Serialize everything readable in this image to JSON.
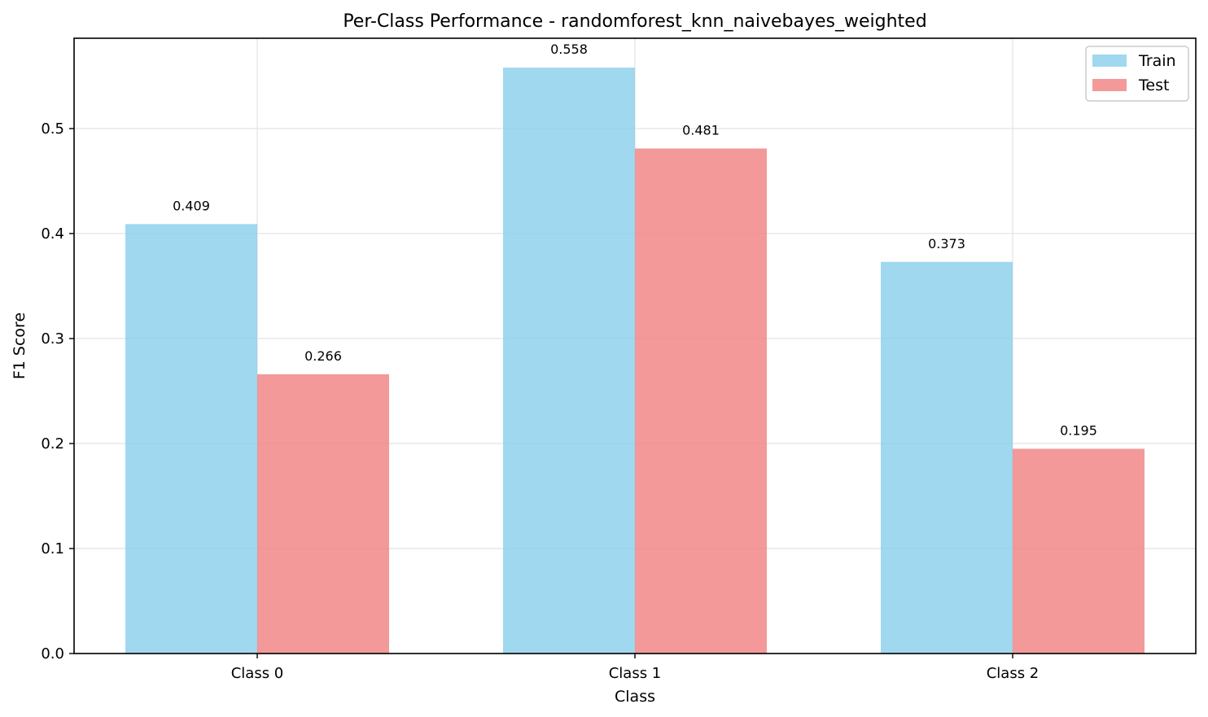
{
  "chart_data": {
    "type": "bar",
    "title": "Per-Class Performance - randomforest_knn_naivebayes_weighted",
    "xlabel": "Class",
    "ylabel": "F1 Score",
    "categories": [
      "Class 0",
      "Class 1",
      "Class 2"
    ],
    "series": [
      {
        "name": "Train",
        "values": [
          0.409,
          0.558,
          0.373
        ],
        "color": "#87ceeb",
        "labels": [
          "0.409",
          "0.558",
          "0.373"
        ]
      },
      {
        "name": "Test",
        "values": [
          0.266,
          0.481,
          0.195
        ],
        "color": "#f08080",
        "labels": [
          "0.266",
          "0.481",
          "0.195"
        ]
      }
    ],
    "ylim": [
      0,
      0.586
    ],
    "yticks": [
      0.0,
      0.1,
      0.2,
      0.3,
      0.4,
      0.5
    ],
    "ytick_labels": [
      "0.0",
      "0.1",
      "0.2",
      "0.3",
      "0.4",
      "0.5"
    ],
    "grid": true,
    "legend_position": "top-right"
  }
}
